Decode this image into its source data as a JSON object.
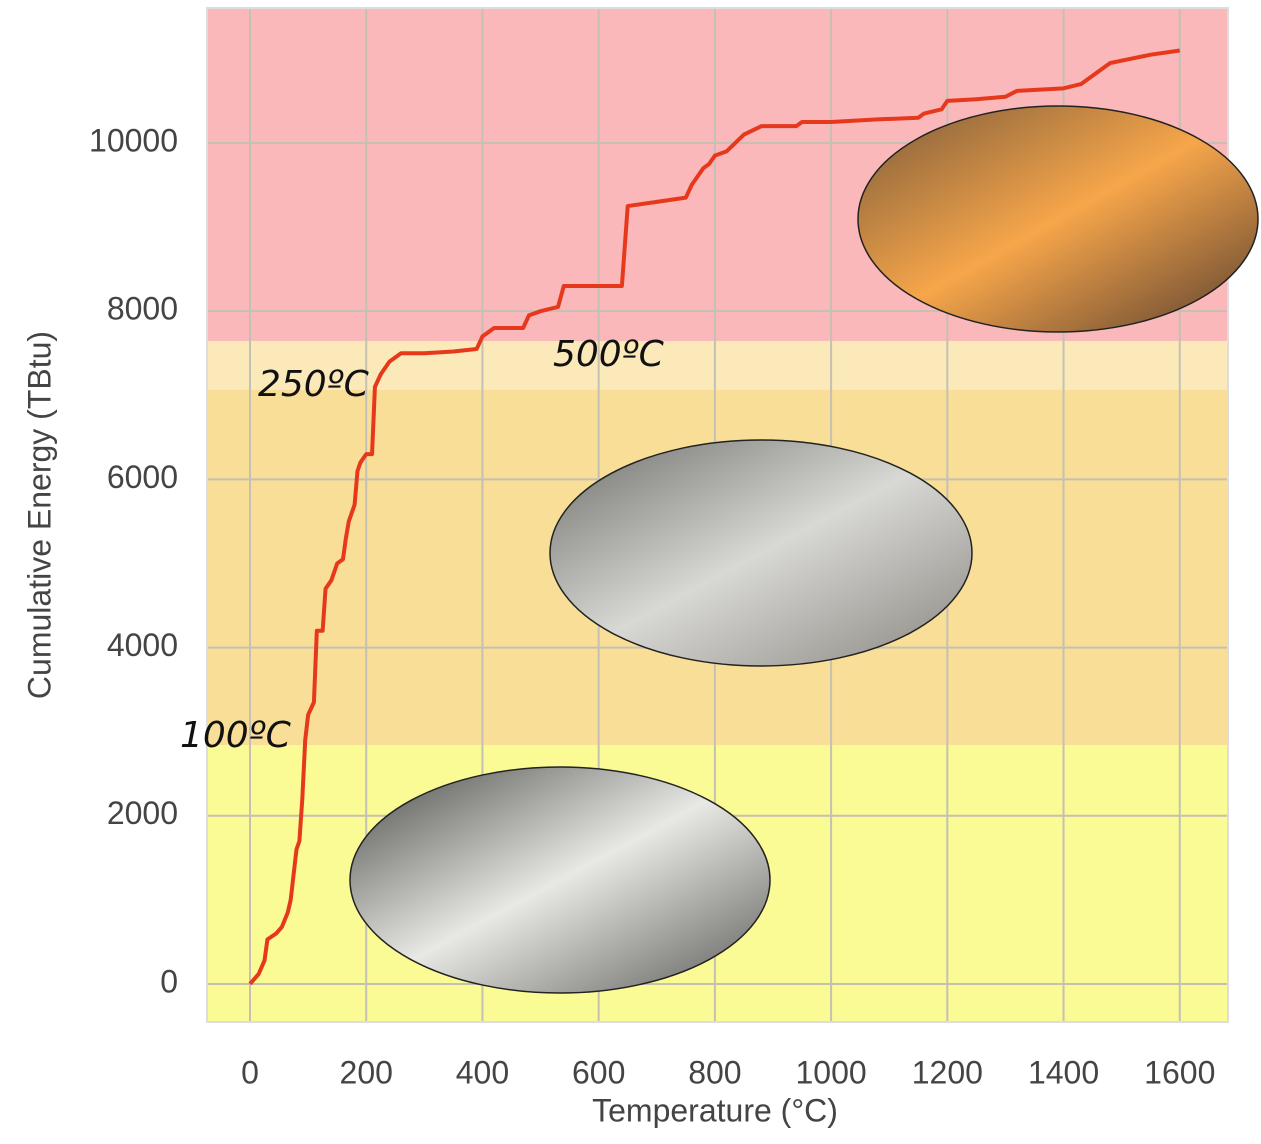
{
  "chart_data": {
    "type": "line",
    "xlabel": "Temperature (°C)",
    "ylabel": "Cumulative Energy (TBtu)",
    "xlim": [
      -74,
      1683
    ],
    "ylim": [
      -452,
      11605
    ],
    "xticks": [
      0,
      200,
      400,
      600,
      800,
      1000,
      1200,
      1400,
      1600
    ],
    "yticks": [
      0,
      2000,
      4000,
      6000,
      8000,
      10000
    ],
    "grid": true,
    "bands": [
      {
        "from": -452,
        "to": 2842,
        "color": "#fbfb96"
      },
      {
        "from": 2842,
        "to": 7063,
        "color": "#f9de97"
      },
      {
        "from": 7063,
        "to": 7646,
        "color": "#fbe9ba"
      },
      {
        "from": 7646,
        "to": 11605,
        "color": "#fbb8ba"
      }
    ],
    "annotations": [
      "100ºC",
      "250ºC",
      "500ºC"
    ],
    "x": [
      0,
      15,
      25,
      30,
      45,
      55,
      65,
      70,
      80,
      85,
      90,
      95,
      100,
      110,
      115,
      125,
      130,
      140,
      150,
      160,
      165,
      170,
      180,
      185,
      190,
      200,
      210,
      215,
      225,
      240,
      260,
      300,
      350,
      390,
      400,
      410,
      420,
      470,
      480,
      500,
      530,
      540,
      600,
      640,
      650,
      700,
      750,
      760,
      780,
      790,
      800,
      820,
      850,
      880,
      940,
      950,
      1000,
      1080,
      1150,
      1160,
      1190,
      1200,
      1250,
      1300,
      1320,
      1400,
      1430,
      1460,
      1480,
      1550,
      1600
    ],
    "series": [
      {
        "color": "#e6391c",
        "values": [
          0,
          120,
          280,
          530,
          600,
          680,
          850,
          1000,
          1600,
          1700,
          2200,
          2900,
          3200,
          3350,
          4200,
          4200,
          4700,
          4800,
          5000,
          5050,
          5300,
          5500,
          5700,
          6100,
          6200,
          6300,
          6300,
          7100,
          7250,
          7400,
          7500,
          7500,
          7520,
          7550,
          7700,
          7750,
          7800,
          7800,
          7950,
          8000,
          8050,
          8300,
          8300,
          8300,
          9250,
          9300,
          9350,
          9500,
          9700,
          9750,
          9850,
          9900,
          10100,
          10200,
          10200,
          10250,
          10250,
          10280,
          10300,
          10350,
          10400,
          10500,
          10520,
          10550,
          10620,
          10650,
          10700,
          10850,
          10950,
          11050,
          11100
        ]
      }
    ]
  }
}
